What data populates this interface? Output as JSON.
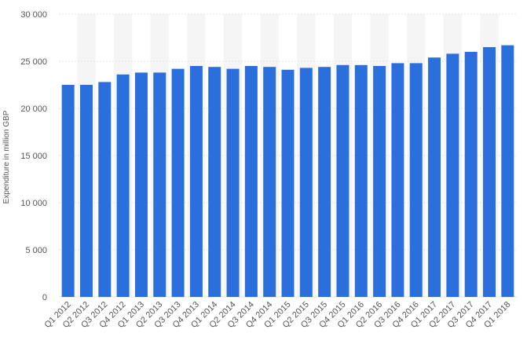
{
  "chart_data": {
    "type": "bar",
    "title": "",
    "xlabel": "",
    "ylabel": "Expenditure in million GBP",
    "ylim": [
      0,
      30000
    ],
    "yticks": [
      0,
      5000,
      10000,
      15000,
      20000,
      25000,
      30000
    ],
    "ytick_labels": [
      "0",
      "5 000",
      "10 000",
      "15 000",
      "20 000",
      "25 000",
      "30 000"
    ],
    "grid": true,
    "legend": "none",
    "categories": [
      "Q1 2012",
      "Q2 2012",
      "Q3 2012",
      "Q4 2012",
      "Q1 2013",
      "Q2 2013",
      "Q3 2013",
      "Q4 2013",
      "Q1 2014",
      "Q2 2014",
      "Q3 2014",
      "Q4 2014",
      "Q1 2015",
      "Q2 2015",
      "Q3 2015",
      "Q4 2015",
      "Q1 2016",
      "Q2 2016",
      "Q3 2016",
      "Q4 2016",
      "Q1 2017",
      "Q2 2017",
      "Q3 2017",
      "Q4 2017",
      "Q1 2018"
    ],
    "values": [
      22500,
      22500,
      22800,
      23600,
      23800,
      23800,
      24200,
      24500,
      24400,
      24200,
      24500,
      24400,
      24100,
      24300,
      24400,
      24600,
      24600,
      24500,
      24800,
      24800,
      25400,
      25800,
      26000,
      26500,
      26700
    ],
    "colors": {
      "bar": "#2a6fdb",
      "band": "#f5f5f5",
      "grid": "#e3e3e3",
      "text": "#555555"
    }
  }
}
